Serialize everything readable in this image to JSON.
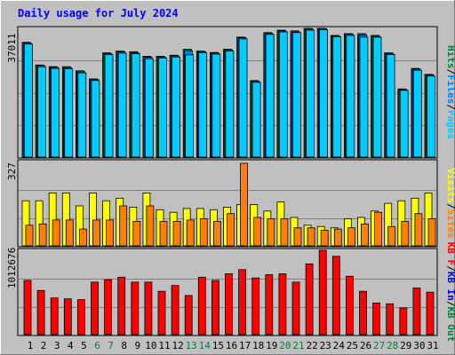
{
  "title": "Daily usage for July 2024",
  "colors": {
    "background": "#c0c0c0",
    "pages": "#00ccff",
    "files": "#0080ff",
    "hits": "#008040",
    "visits": "#ffff00",
    "sites": "#ff8000",
    "kb_in": "#0000ff",
    "kb_out": "#008040",
    "kb_f": "#ff0000",
    "weekend_day": "#008040",
    "weekday_day": "#000000"
  },
  "chart_data": [
    {
      "type": "bar",
      "panel": "hits",
      "y_label": "37011",
      "legend": [
        {
          "text": "Hits",
          "color": "#008040"
        },
        {
          "text": "/",
          "color": "#000000"
        },
        {
          "text": "Files",
          "color": "#0080ff"
        },
        {
          "text": "/",
          "color": "#000000"
        },
        {
          "text": "Pages",
          "color": "#00ccff"
        }
      ],
      "ylim": [
        0,
        37011
      ],
      "series": [
        {
          "name": "Hits",
          "values": [
            33000,
            26500,
            26000,
            26000,
            24800,
            22500,
            30000,
            30500,
            30300,
            29000,
            29000,
            29300,
            31000,
            30500,
            30100,
            31000,
            34500,
            22000,
            35800,
            36500,
            36300,
            37011,
            37011,
            35000,
            35500,
            35500,
            35000,
            30000,
            19600,
            25500,
            23800
          ]
        },
        {
          "name": "Files",
          "values": [
            32800,
            26300,
            25800,
            25700,
            24500,
            22300,
            29800,
            30200,
            30000,
            28700,
            28800,
            29100,
            30600,
            30300,
            29900,
            30800,
            34300,
            21800,
            35500,
            36300,
            36000,
            36800,
            36900,
            34800,
            35300,
            35100,
            34700,
            29800,
            19400,
            25300,
            23600
          ]
        },
        {
          "name": "Pages",
          "values": [
            32500,
            26000,
            25500,
            25400,
            24200,
            22000,
            29500,
            29900,
            29700,
            28300,
            28500,
            28800,
            29400,
            30000,
            29600,
            30500,
            34000,
            21500,
            35300,
            36000,
            35800,
            36500,
            36600,
            34600,
            35000,
            34500,
            34500,
            29500,
            19200,
            25000,
            23300
          ]
        }
      ]
    },
    {
      "type": "bar",
      "panel": "visits",
      "y_label": "327",
      "legend": [
        {
          "text": "Visits",
          "color": "#ffff00"
        },
        {
          "text": "/",
          "color": "#000000"
        },
        {
          "text": "Sites",
          "color": "#ff8000"
        }
      ],
      "ylim": [
        0,
        327
      ],
      "series": [
        {
          "name": "Visits",
          "values": [
            175,
            175,
            205,
            205,
            155,
            205,
            175,
            185,
            150,
            205,
            140,
            130,
            145,
            145,
            140,
            150,
            160,
            160,
            135,
            170,
            110,
            80,
            75,
            70,
            105,
            110,
            135,
            165,
            175,
            185,
            205
          ]
        },
        {
          "name": "Sites",
          "values": [
            80,
            85,
            100,
            100,
            65,
            100,
            100,
            155,
            95,
            155,
            95,
            95,
            100,
            105,
            95,
            125,
            320,
            110,
            105,
            105,
            70,
            70,
            60,
            65,
            70,
            85,
            130,
            75,
            95,
            125,
            105
          ]
        }
      ]
    },
    {
      "type": "bar",
      "panel": "kbytes",
      "y_label": "1012676",
      "legend": [
        {
          "text": "KB F",
          "color": "#ff0000"
        },
        {
          "text": "/",
          "color": "#000000"
        },
        {
          "text": "KB In",
          "color": "#0000ff"
        },
        {
          "text": "/",
          "color": "#000000"
        },
        {
          "text": "KB Out",
          "color": "#008040"
        }
      ],
      "ylim": [
        0,
        1012676
      ],
      "series": [
        {
          "name": "KB F",
          "values": [
            650000,
            530000,
            440000,
            430000,
            420000,
            630000,
            660000,
            690000,
            630000,
            630000,
            520000,
            590000,
            470000,
            690000,
            650000,
            730000,
            780000,
            680000,
            720000,
            730000,
            630000,
            850000,
            1012676,
            940000,
            700000,
            520000,
            380000,
            370000,
            320000,
            560000,
            510000
          ]
        }
      ]
    }
  ],
  "days": [
    {
      "label": "1",
      "weekend": false
    },
    {
      "label": "2",
      "weekend": false
    },
    {
      "label": "3",
      "weekend": false
    },
    {
      "label": "4",
      "weekend": false
    },
    {
      "label": "5",
      "weekend": false
    },
    {
      "label": "6",
      "weekend": true
    },
    {
      "label": "7",
      "weekend": true
    },
    {
      "label": "8",
      "weekend": false
    },
    {
      "label": "9",
      "weekend": false
    },
    {
      "label": "10",
      "weekend": false
    },
    {
      "label": "11",
      "weekend": false
    },
    {
      "label": "12",
      "weekend": false
    },
    {
      "label": "13",
      "weekend": true
    },
    {
      "label": "14",
      "weekend": true
    },
    {
      "label": "15",
      "weekend": false
    },
    {
      "label": "16",
      "weekend": false
    },
    {
      "label": "17",
      "weekend": false
    },
    {
      "label": "18",
      "weekend": false
    },
    {
      "label": "19",
      "weekend": false
    },
    {
      "label": "20",
      "weekend": true
    },
    {
      "label": "21",
      "weekend": true
    },
    {
      "label": "22",
      "weekend": false
    },
    {
      "label": "23",
      "weekend": false
    },
    {
      "label": "24",
      "weekend": false
    },
    {
      "label": "25",
      "weekend": false
    },
    {
      "label": "26",
      "weekend": false
    },
    {
      "label": "27",
      "weekend": true
    },
    {
      "label": "28",
      "weekend": true
    },
    {
      "label": "29",
      "weekend": false
    },
    {
      "label": "30",
      "weekend": false
    },
    {
      "label": "31",
      "weekend": false
    }
  ]
}
